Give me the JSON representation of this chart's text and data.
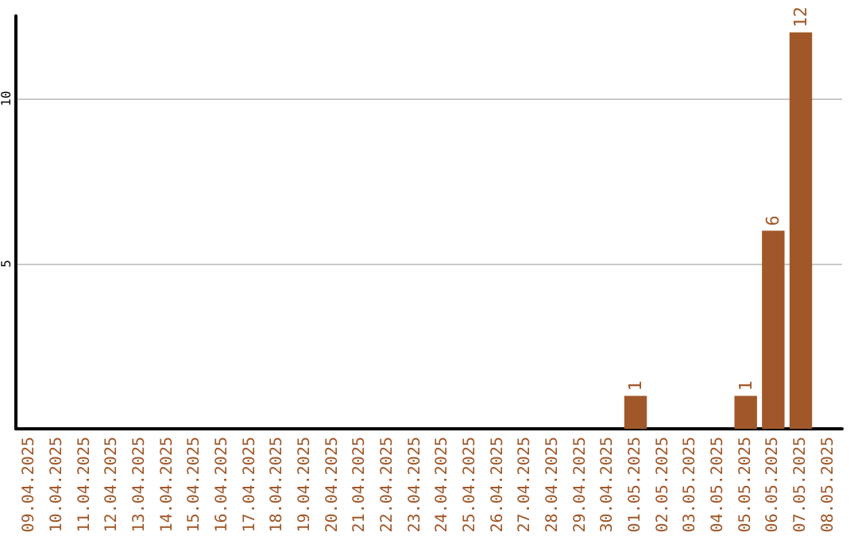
{
  "chart_data": {
    "type": "bar",
    "categories": [
      "09.04.2025",
      "10.04.2025",
      "11.04.2025",
      "12.04.2025",
      "13.04.2025",
      "14.04.2025",
      "15.04.2025",
      "16.04.2025",
      "17.04.2025",
      "18.04.2025",
      "19.04.2025",
      "20.04.2025",
      "21.04.2025",
      "22.04.2025",
      "23.04.2025",
      "24.04.2025",
      "25.04.2025",
      "26.04.2025",
      "27.04.2025",
      "28.04.2025",
      "29.04.2025",
      "30.04.2025",
      "01.05.2025",
      "02.05.2025",
      "03.05.2025",
      "04.05.2025",
      "05.05.2025",
      "06.05.2025",
      "07.05.2025",
      "08.05.2025"
    ],
    "values": [
      0,
      0,
      0,
      0,
      0,
      0,
      0,
      0,
      0,
      0,
      0,
      0,
      0,
      0,
      0,
      0,
      0,
      0,
      0,
      0,
      0,
      0,
      1,
      0,
      0,
      0,
      1,
      6,
      12,
      0
    ],
    "value_labels": [
      null,
      null,
      null,
      null,
      null,
      null,
      null,
      null,
      null,
      null,
      null,
      null,
      null,
      null,
      null,
      null,
      null,
      null,
      null,
      null,
      null,
      null,
      "1",
      null,
      null,
      null,
      "1",
      "6",
      "12",
      null
    ],
    "color": "#a0582a",
    "ylim": [
      0,
      12.5
    ],
    "yticks": [
      5,
      10
    ],
    "grid": "y"
  }
}
